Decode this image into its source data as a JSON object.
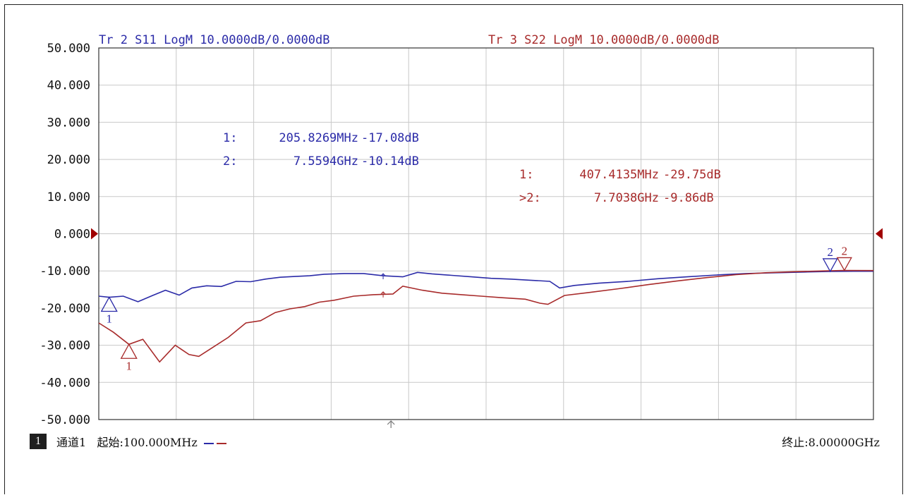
{
  "colors": {
    "trace2": "#2b2ba8",
    "trace3": "#a82b2b",
    "grid": "#c8c8c8",
    "axis": "#333333",
    "ref_marker": "#a00000"
  },
  "headers": {
    "tr2": "Tr 2  S11 LogM 10.0000dB/0.0000dB",
    "tr3": "Tr 3  S22 LogM 10.0000dB/0.0000dB"
  },
  "readouts": {
    "tr2": [
      {
        "label": "1:",
        "freq": "205.8269MHz",
        "val": "-17.08dB"
      },
      {
        "label": "2:",
        "freq": "7.5594GHz",
        "val": "-10.14dB"
      }
    ],
    "tr3": [
      {
        "label": "1:",
        "freq": "407.4135MHz",
        "val": "-29.75dB"
      },
      {
        "label": ">2:",
        "freq": "7.7038GHz",
        "val": "-9.86dB"
      }
    ]
  },
  "footer": {
    "channel_num": "1",
    "channel_label": "通道1",
    "start": "起始:100.000MHz",
    "stop": "终止:8.00000GHz"
  },
  "chart_data": {
    "type": "line",
    "xlim": [
      0.1,
      8.0
    ],
    "x_unit": "GHz",
    "ylim": [
      -50,
      50
    ],
    "y_ticks": [
      "50.000",
      "40.000",
      "30.000",
      "20.000",
      "10.000",
      "0.000",
      "-10.000",
      "-20.000",
      "-30.000",
      "-40.000",
      "-50.000"
    ],
    "grid": true,
    "reference_level": 0,
    "series": [
      {
        "name": "S11",
        "color": "#2b2ba8",
        "x": [
          0.1,
          0.206,
          0.35,
          0.5,
          0.65,
          0.78,
          0.92,
          1.05,
          1.2,
          1.35,
          1.5,
          1.65,
          1.8,
          1.95,
          2.1,
          2.25,
          2.4,
          2.6,
          2.8,
          3.0,
          3.2,
          3.35,
          3.5,
          3.7,
          3.9,
          4.1,
          4.3,
          4.5,
          4.7,
          4.8,
          4.95,
          5.2,
          5.5,
          5.8,
          6.1,
          6.4,
          6.7,
          7.0,
          7.3,
          7.56,
          7.8,
          8.0
        ],
        "y": [
          -16.8,
          -17.1,
          -16.8,
          -18.3,
          -16.6,
          -15.2,
          -16.5,
          -14.6,
          -14.0,
          -14.2,
          -12.8,
          -12.9,
          -12.2,
          -11.7,
          -11.5,
          -11.3,
          -10.9,
          -10.7,
          -10.7,
          -11.3,
          -11.6,
          -10.4,
          -10.8,
          -11.2,
          -11.6,
          -12.0,
          -12.2,
          -12.5,
          -12.8,
          -14.6,
          -13.9,
          -13.3,
          -12.8,
          -12.1,
          -11.6,
          -11.1,
          -10.7,
          -10.5,
          -10.3,
          -10.14,
          -10.1,
          -10.1
        ]
      },
      {
        "name": "S22",
        "color": "#a82b2b",
        "x": [
          0.1,
          0.25,
          0.407,
          0.55,
          0.72,
          0.88,
          1.02,
          1.12,
          1.25,
          1.42,
          1.6,
          1.75,
          1.9,
          2.05,
          2.2,
          2.35,
          2.5,
          2.7,
          2.9,
          3.1,
          3.2,
          3.4,
          3.6,
          3.8,
          4.0,
          4.2,
          4.45,
          4.6,
          4.68,
          4.85,
          5.1,
          5.4,
          5.7,
          6.0,
          6.3,
          6.6,
          6.9,
          7.2,
          7.5,
          7.7,
          8.0
        ],
        "y": [
          -24.0,
          -26.5,
          -29.75,
          -28.4,
          -34.5,
          -30.0,
          -32.5,
          -33.0,
          -30.8,
          -27.9,
          -24.0,
          -23.4,
          -21.2,
          -20.2,
          -19.6,
          -18.4,
          -17.9,
          -16.8,
          -16.4,
          -16.2,
          -14.1,
          -15.2,
          -16.0,
          -16.4,
          -16.8,
          -17.2,
          -17.6,
          -18.7,
          -19.0,
          -16.6,
          -15.8,
          -14.8,
          -13.7,
          -12.7,
          -11.8,
          -11.0,
          -10.5,
          -10.2,
          -10.0,
          -9.86,
          -9.9
        ]
      }
    ],
    "markers": [
      {
        "series": "S11",
        "label": "1",
        "x": 0.206,
        "y": -17.08,
        "glyph": "up"
      },
      {
        "series": "S11",
        "label": "2",
        "x": 7.5594,
        "y": -10.14,
        "glyph": "down"
      },
      {
        "series": "S22",
        "label": "1",
        "x": 0.4074,
        "y": -29.75,
        "glyph": "up"
      },
      {
        "series": "S22",
        "label": "2",
        "x": 7.7038,
        "y": -9.86,
        "glyph": "down"
      }
    ]
  }
}
